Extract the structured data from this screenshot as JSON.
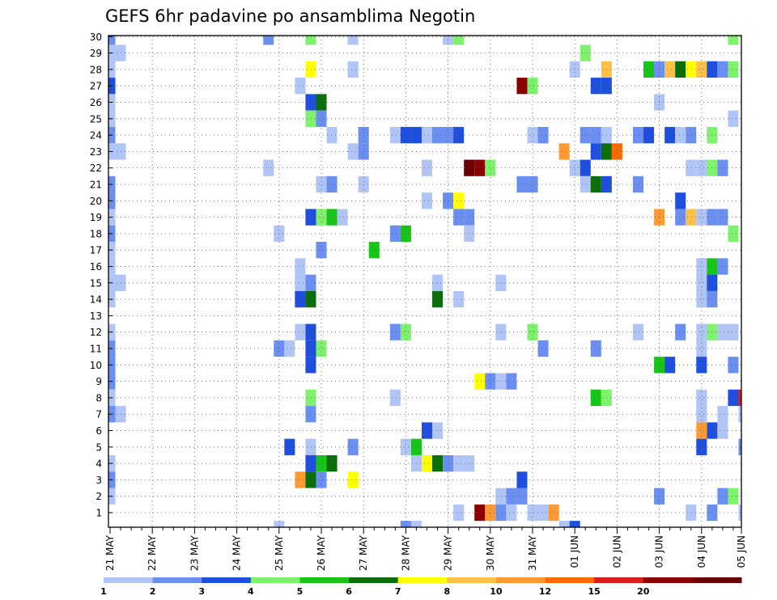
{
  "chart_data": {
    "type": "heatmap",
    "title": "GEFS 6hr padavine po ansamblima Negotin",
    "xlabel": "",
    "ylabel": "",
    "x_ticks": [
      "21 MAY",
      "22 MAY",
      "23 MAY",
      "24 MAY",
      "25 MAY",
      "26 MAY",
      "27 MAY",
      "28 MAY",
      "29 MAY",
      "30 MAY",
      "31 MAY",
      "01 JUN",
      "02 JUN",
      "03 JUN",
      "04 JUN",
      "05 JUN"
    ],
    "y_ticks": [
      1,
      2,
      3,
      4,
      5,
      6,
      7,
      8,
      9,
      10,
      11,
      12,
      13,
      14,
      15,
      16,
      17,
      18,
      19,
      20,
      21,
      22,
      23,
      24,
      25,
      26,
      27,
      28,
      29,
      30
    ],
    "x_steps_per_day": 4,
    "x_range_steps": [
      0,
      60
    ],
    "y_range": [
      0,
      30
    ],
    "grid": true,
    "legend": {
      "placement": "bottom",
      "levels": [
        "1",
        "2",
        "3",
        "4",
        "5",
        "6",
        "7",
        "8",
        "10",
        "12",
        "15",
        "20"
      ],
      "colors": [
        "#b0c4f5",
        "#6a8ff0",
        "#1f4fdf",
        "#7ff26d",
        "#18c418",
        "#0b6e0b",
        "#ffff00",
        "#ffc04a",
        "#ff9a33",
        "#ff6a00",
        "#d91c1c",
        "#8a0000",
        "#6a0000"
      ]
    },
    "cells_note": "each cell: [time step from 21 MAY 00z (6-hourly), ensemble member, color class index into legend colors]",
    "cells": [
      [
        0,
        30,
        1
      ],
      [
        0,
        29,
        0
      ],
      [
        1,
        29,
        0
      ],
      [
        0,
        28,
        0
      ],
      [
        0,
        27,
        2
      ],
      [
        0,
        26,
        0
      ],
      [
        0,
        25,
        0
      ],
      [
        0,
        24,
        1
      ],
      [
        0,
        23,
        0
      ],
      [
        1,
        23,
        0
      ],
      [
        0,
        21,
        1
      ],
      [
        0,
        20,
        1
      ],
      [
        0,
        19,
        0
      ],
      [
        0,
        18,
        1
      ],
      [
        0,
        17,
        0
      ],
      [
        0,
        16,
        0
      ],
      [
        0,
        15,
        0
      ],
      [
        1,
        15,
        0
      ],
      [
        0,
        14,
        0
      ],
      [
        0,
        12,
        0
      ],
      [
        0,
        11,
        1
      ],
      [
        0,
        10,
        1
      ],
      [
        0,
        9,
        1
      ],
      [
        0,
        8,
        0
      ],
      [
        0,
        7,
        1
      ],
      [
        1,
        7,
        0
      ],
      [
        0,
        4,
        0
      ],
      [
        0,
        3,
        1
      ],
      [
        0,
        2,
        0
      ],
      [
        15,
        30,
        1
      ],
      [
        19,
        30,
        3
      ],
      [
        23,
        30,
        0
      ],
      [
        32,
        30,
        0
      ],
      [
        33,
        30,
        3
      ],
      [
        59,
        30,
        3
      ],
      [
        45,
        29,
        3
      ],
      [
        19,
        28,
        6
      ],
      [
        23,
        28,
        0
      ],
      [
        44,
        28,
        0
      ],
      [
        47,
        28,
        7
      ],
      [
        51,
        28,
        4
      ],
      [
        52,
        28,
        1
      ],
      [
        53,
        28,
        7
      ],
      [
        54,
        28,
        5
      ],
      [
        55,
        28,
        6
      ],
      [
        56,
        28,
        7
      ],
      [
        57,
        28,
        2
      ],
      [
        58,
        28,
        1
      ],
      [
        59,
        28,
        3
      ],
      [
        18,
        27,
        0
      ],
      [
        39,
        27,
        11
      ],
      [
        40,
        27,
        3
      ],
      [
        46,
        27,
        2
      ],
      [
        47,
        27,
        2
      ],
      [
        19,
        26,
        2
      ],
      [
        20,
        26,
        5
      ],
      [
        52,
        26,
        0
      ],
      [
        19,
        25,
        3
      ],
      [
        20,
        25,
        1
      ],
      [
        59,
        25,
        0
      ],
      [
        21,
        24,
        0
      ],
      [
        24,
        24,
        1
      ],
      [
        27,
        24,
        0
      ],
      [
        28,
        24,
        2
      ],
      [
        29,
        24,
        2
      ],
      [
        30,
        24,
        0
      ],
      [
        31,
        24,
        1
      ],
      [
        32,
        24,
        1
      ],
      [
        33,
        24,
        2
      ],
      [
        40,
        24,
        0
      ],
      [
        41,
        24,
        1
      ],
      [
        45,
        24,
        1
      ],
      [
        46,
        24,
        1
      ],
      [
        47,
        24,
        0
      ],
      [
        50,
        24,
        1
      ],
      [
        51,
        24,
        2
      ],
      [
        53,
        24,
        2
      ],
      [
        54,
        24,
        0
      ],
      [
        55,
        24,
        1
      ],
      [
        57,
        24,
        3
      ],
      [
        23,
        23,
        0
      ],
      [
        24,
        23,
        1
      ],
      [
        43,
        23,
        8
      ],
      [
        46,
        23,
        2
      ],
      [
        47,
        23,
        5
      ],
      [
        48,
        23,
        9
      ],
      [
        15,
        22,
        0
      ],
      [
        30,
        22,
        0
      ],
      [
        34,
        22,
        12
      ],
      [
        35,
        22,
        11
      ],
      [
        36,
        22,
        3
      ],
      [
        44,
        22,
        0
      ],
      [
        45,
        22,
        2
      ],
      [
        55,
        22,
        0
      ],
      [
        56,
        22,
        0
      ],
      [
        57,
        22,
        3
      ],
      [
        58,
        22,
        1
      ],
      [
        20,
        21,
        0
      ],
      [
        21,
        21,
        1
      ],
      [
        24,
        21,
        0
      ],
      [
        39,
        21,
        1
      ],
      [
        40,
        21,
        1
      ],
      [
        45,
        21,
        0
      ],
      [
        46,
        21,
        5
      ],
      [
        47,
        21,
        2
      ],
      [
        50,
        21,
        1
      ],
      [
        30,
        20,
        0
      ],
      [
        32,
        20,
        1
      ],
      [
        33,
        20,
        6
      ],
      [
        54,
        20,
        2
      ],
      [
        19,
        19,
        2
      ],
      [
        20,
        19,
        3
      ],
      [
        21,
        19,
        4
      ],
      [
        22,
        19,
        0
      ],
      [
        33,
        19,
        1
      ],
      [
        34,
        19,
        1
      ],
      [
        52,
        19,
        8
      ],
      [
        54,
        19,
        1
      ],
      [
        55,
        19,
        7
      ],
      [
        56,
        19,
        0
      ],
      [
        57,
        19,
        1
      ],
      [
        58,
        19,
        1
      ],
      [
        16,
        18,
        0
      ],
      [
        27,
        18,
        1
      ],
      [
        28,
        18,
        4
      ],
      [
        34,
        18,
        0
      ],
      [
        59,
        18,
        3
      ],
      [
        20,
        17,
        1
      ],
      [
        25,
        17,
        4
      ],
      [
        18,
        16,
        0
      ],
      [
        56,
        16,
        0
      ],
      [
        57,
        16,
        4
      ],
      [
        58,
        16,
        1
      ],
      [
        18,
        15,
        0
      ],
      [
        19,
        15,
        1
      ],
      [
        31,
        15,
        0
      ],
      [
        37,
        15,
        0
      ],
      [
        56,
        15,
        0
      ],
      [
        57,
        15,
        2
      ],
      [
        18,
        14,
        2
      ],
      [
        19,
        14,
        5
      ],
      [
        31,
        14,
        5
      ],
      [
        33,
        14,
        0
      ],
      [
        56,
        14,
        0
      ],
      [
        57,
        14,
        1
      ],
      [
        18,
        12,
        0
      ],
      [
        19,
        12,
        2
      ],
      [
        27,
        12,
        1
      ],
      [
        28,
        12,
        3
      ],
      [
        37,
        12,
        0
      ],
      [
        40,
        12,
        3
      ],
      [
        50,
        12,
        0
      ],
      [
        54,
        12,
        1
      ],
      [
        56,
        12,
        0
      ],
      [
        57,
        12,
        3
      ],
      [
        58,
        12,
        0
      ],
      [
        59,
        12,
        0
      ],
      [
        16,
        11,
        1
      ],
      [
        17,
        11,
        0
      ],
      [
        19,
        11,
        2
      ],
      [
        20,
        11,
        3
      ],
      [
        41,
        11,
        1
      ],
      [
        46,
        11,
        1
      ],
      [
        56,
        11,
        0
      ],
      [
        19,
        10,
        2
      ],
      [
        52,
        10,
        4
      ],
      [
        53,
        10,
        2
      ],
      [
        56,
        10,
        2
      ],
      [
        59,
        10,
        1
      ],
      [
        35,
        9,
        6
      ],
      [
        36,
        9,
        1
      ],
      [
        37,
        9,
        0
      ],
      [
        38,
        9,
        1
      ],
      [
        19,
        8,
        3
      ],
      [
        27,
        8,
        0
      ],
      [
        46,
        8,
        4
      ],
      [
        47,
        8,
        3
      ],
      [
        56,
        8,
        0
      ],
      [
        59,
        8,
        2
      ],
      [
        60,
        8,
        10
      ],
      [
        19,
        7,
        1
      ],
      [
        56,
        7,
        0
      ],
      [
        58,
        7,
        0
      ],
      [
        60,
        7,
        0
      ],
      [
        30,
        6,
        2
      ],
      [
        31,
        6,
        0
      ],
      [
        56,
        6,
        8
      ],
      [
        57,
        6,
        2
      ],
      [
        58,
        6,
        0
      ],
      [
        17,
        5,
        2
      ],
      [
        19,
        5,
        0
      ],
      [
        23,
        5,
        1
      ],
      [
        28,
        5,
        0
      ],
      [
        29,
        5,
        4
      ],
      [
        56,
        5,
        2
      ],
      [
        60,
        5,
        1
      ],
      [
        19,
        4,
        2
      ],
      [
        20,
        4,
        4
      ],
      [
        21,
        4,
        5
      ],
      [
        29,
        4,
        0
      ],
      [
        30,
        4,
        6
      ],
      [
        31,
        4,
        5
      ],
      [
        32,
        4,
        1
      ],
      [
        33,
        4,
        0
      ],
      [
        34,
        4,
        0
      ],
      [
        18,
        3,
        8
      ],
      [
        19,
        3,
        5
      ],
      [
        20,
        3,
        1
      ],
      [
        23,
        3,
        6
      ],
      [
        39,
        3,
        2
      ],
      [
        37,
        2,
        0
      ],
      [
        38,
        2,
        1
      ],
      [
        39,
        2,
        1
      ],
      [
        52,
        2,
        1
      ],
      [
        58,
        2,
        1
      ],
      [
        59,
        2,
        3
      ],
      [
        33,
        1,
        0
      ],
      [
        35,
        1,
        11
      ],
      [
        36,
        1,
        8
      ],
      [
        37,
        1,
        1
      ],
      [
        38,
        1,
        0
      ],
      [
        40,
        1,
        0
      ],
      [
        41,
        1,
        0
      ],
      [
        42,
        1,
        8
      ],
      [
        55,
        1,
        0
      ],
      [
        57,
        1,
        1
      ],
      [
        60,
        1,
        0
      ],
      [
        16,
        0,
        0
      ],
      [
        28,
        0,
        1
      ],
      [
        29,
        0,
        0
      ],
      [
        43,
        0,
        0
      ],
      [
        44,
        0,
        2
      ]
    ]
  }
}
